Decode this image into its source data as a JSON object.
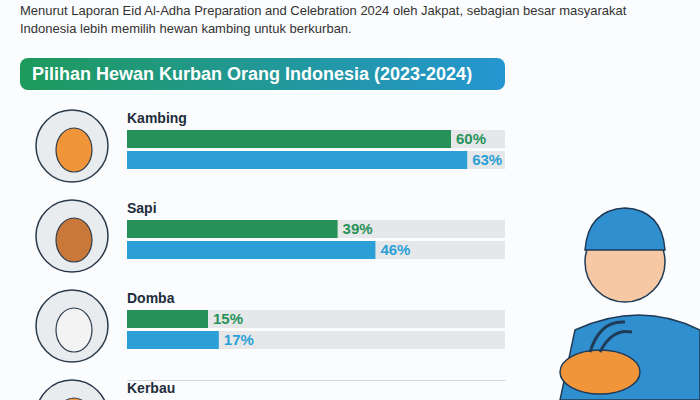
{
  "chart_data": {
    "type": "bar",
    "orientation": "horizontal",
    "subtitle": "Menurut Laporan Eid Al-Adha Preparation and Celebration 2024 oleh Jakpat, sebagian besar masyarakat Indonesia lebih memilih hewan kambing untuk berkurban.",
    "title": "Pilihan Hewan Kurban Orang Indonesia (2023-2024)",
    "categories": [
      "Kambing",
      "Sapi",
      "Domba",
      "Kerbau"
    ],
    "series": [
      {
        "color": "#26925a",
        "values": [
          60,
          39,
          15,
          null
        ],
        "value_labels": [
          "60%",
          "39%",
          "15%",
          null
        ]
      },
      {
        "color": "#2b9fd6",
        "values": [
          63,
          46,
          17,
          null
        ],
        "value_labels": [
          "63%",
          "46%",
          "17%",
          null
        ]
      }
    ],
    "xlim": [
      0,
      70
    ],
    "xticks": [],
    "tick_labels": false,
    "data_labels": true
  }
}
